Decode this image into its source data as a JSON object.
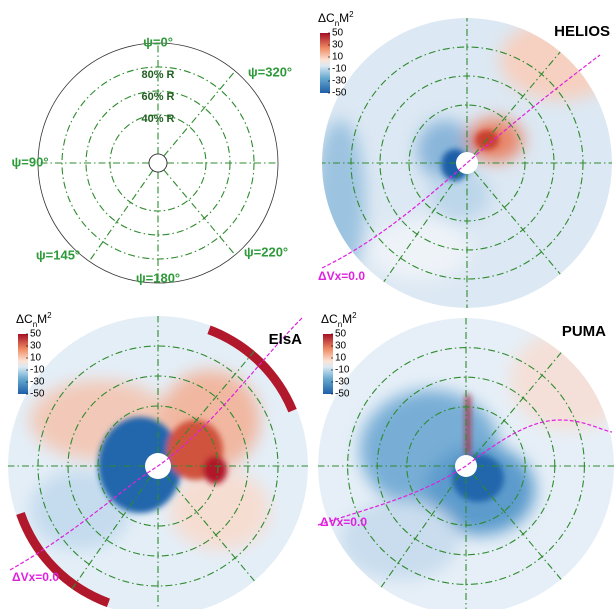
{
  "schematic": {
    "azimuth_labels": [
      "ψ=0°",
      "ψ=320°",
      "ψ=90°",
      "ψ=145°",
      "ψ=180°",
      "ψ=220°"
    ],
    "radius_labels": [
      "80% R",
      "60% R",
      "40% R"
    ]
  },
  "colorbar": {
    "title": {
      "base": "ΔC",
      "sub": "n",
      "mid": "M",
      "sup": "2"
    },
    "ticks": [
      50,
      30,
      10,
      -10,
      -30,
      -50
    ]
  },
  "panels": [
    {
      "title": "HELIOS",
      "annotation": "ΔVx=0.0"
    },
    {
      "title": "ElsA",
      "annotation": "ΔVx=0.0"
    },
    {
      "title": "PUMA",
      "annotation": "ΔVx=0.0"
    }
  ]
}
